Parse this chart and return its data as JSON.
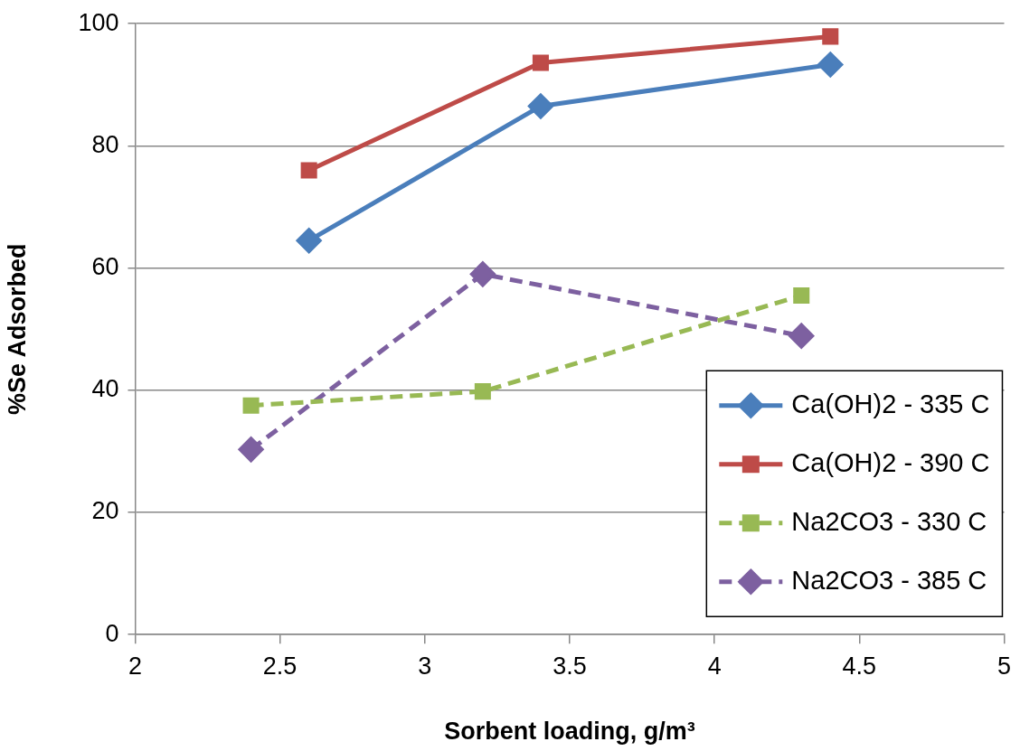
{
  "chart_data": {
    "type": "line",
    "xlabel": "Sorbent loading, g/m³",
    "ylabel": "%Se Adsorbed",
    "xlim": [
      2,
      5
    ],
    "xticks": [
      2,
      {
        "value": 2.5,
        "label": "2.5"
      },
      3,
      {
        "value": 3.5,
        "label": "3.5"
      },
      4,
      {
        "value": 4.5,
        "label": "4.5"
      },
      5
    ],
    "ylim": [
      0,
      100
    ],
    "yticks": [
      0,
      20,
      40,
      60,
      80,
      100
    ],
    "grid": "y",
    "legend": "bottom right",
    "series": [
      {
        "name": "Ca(OH)2 - 335 C",
        "color": "#4a7ebb",
        "x": [
          2.6,
          3.4,
          4.4
        ],
        "values": [
          64.5,
          86.5,
          93.3
        ],
        "marker": "diamond",
        "line_style": "solid"
      },
      {
        "name": "Ca(OH)2 - 390 C",
        "color": "#be4b48",
        "x": [
          2.6,
          3.4,
          4.4
        ],
        "values": [
          76.0,
          93.6,
          97.9
        ],
        "marker": "square",
        "line_style": "solid"
      },
      {
        "name": "Na2CO3 - 330 C",
        "color": "#98b954",
        "x": [
          2.4,
          3.2,
          4.3
        ],
        "values": [
          37.5,
          39.8,
          55.5
        ],
        "marker": "square",
        "line_style": "dashed"
      },
      {
        "name": "Na2CO3 - 385 C",
        "color": "#7d60a0",
        "x": [
          2.4,
          3.2,
          4.3
        ],
        "values": [
          30.3,
          59.0,
          48.9
        ],
        "marker": "diamond",
        "line_style": "dashed"
      }
    ]
  }
}
